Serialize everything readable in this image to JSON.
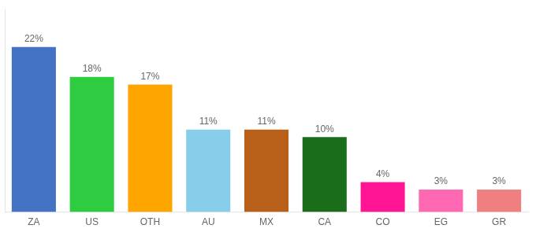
{
  "chart_data": {
    "type": "bar",
    "categories": [
      "ZA",
      "US",
      "OTH",
      "AU",
      "MX",
      "CA",
      "CO",
      "EG",
      "GR"
    ],
    "values": [
      22,
      18,
      17,
      11,
      11,
      10,
      4,
      3,
      3
    ],
    "value_labels": [
      "22%",
      "18%",
      "17%",
      "11%",
      "11%",
      "10%",
      "4%",
      "3%",
      "3%"
    ],
    "colors": [
      "#4472c4",
      "#2ecc40",
      "#ffa500",
      "#87ceeb",
      "#b8601a",
      "#1a6e1a",
      "#ff1493",
      "#ff69b4",
      "#f08080"
    ],
    "ylim": [
      0,
      27
    ],
    "grid": false,
    "data_labels": true,
    "tick_labels": "x"
  }
}
